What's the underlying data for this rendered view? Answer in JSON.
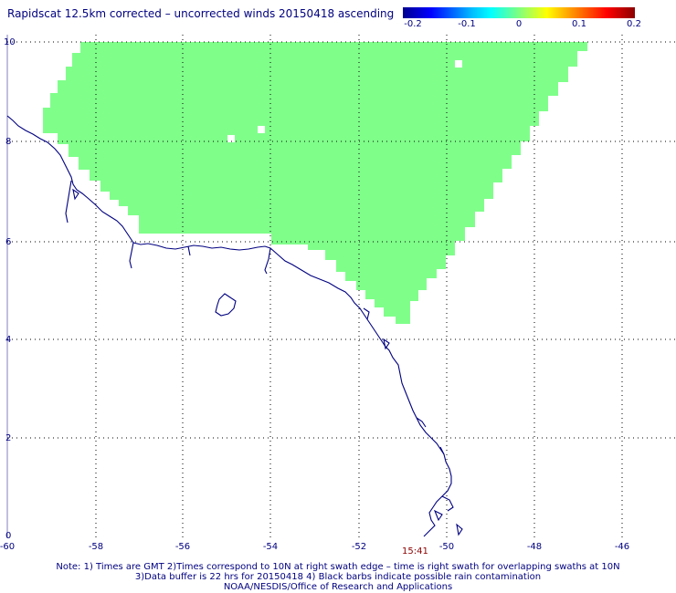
{
  "title": "Rapidscat 12.5km corrected – uncorrected winds 20150418 ascending",
  "colorbar": {
    "labels": [
      "-0.2",
      "-0.1",
      "0",
      "0.1",
      "0.2"
    ],
    "colors": [
      "#00008f",
      "#0000ff",
      "#00ffff",
      "#7fff7f",
      "#ffff00",
      "#ff0000",
      "#8b0000"
    ]
  },
  "map": {
    "x_ticks": [
      "-60",
      "-58",
      "-56",
      "-54",
      "-52",
      "-50",
      "-48",
      "-46"
    ],
    "y_ticks": [
      "0",
      "2",
      "4",
      "6",
      "8",
      "10"
    ],
    "xlim": [
      -60,
      -45.3
    ],
    "ylim": [
      0,
      10
    ],
    "swath_color": "#7fff8a",
    "coast_color": "#000080",
    "grid": true
  },
  "time_label": "15:41",
  "notes": {
    "line1": "Note: 1) Times are GMT 2)Times correspond to 10N at right swath edge – time is right swath for overlapping swaths at 10N",
    "line2": "3)Data buffer is 22 hrs for 20150418 4) Black barbs indicate possible rain contamination",
    "line3": "NOAA/NESDIS/Office of Research and Applications"
  }
}
